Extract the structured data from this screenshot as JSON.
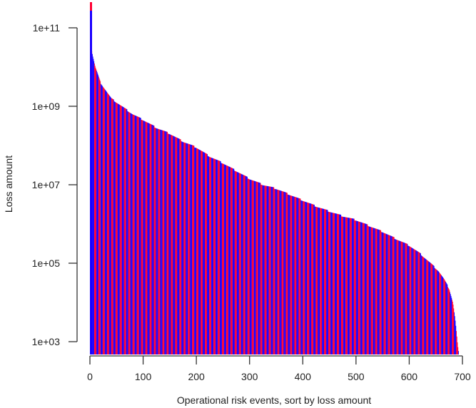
{
  "chart_data": {
    "type": "bar",
    "title": "",
    "xlabel": "Operational risk events, sort by loss amount",
    "ylabel": "Loss amount",
    "yscale": "log",
    "xlim": [
      0,
      700
    ],
    "ylim_log10": [
      3,
      11
    ],
    "x_ticks": [
      0,
      100,
      200,
      300,
      400,
      500,
      600,
      700
    ],
    "x_tick_labels": [
      "0",
      "100",
      "200",
      "300",
      "400",
      "500",
      "600",
      "700"
    ],
    "y_ticks": [
      1000.0,
      100000.0,
      10000000.0,
      1000000000.0,
      100000000000.0
    ],
    "y_tick_labels": [
      "1e+03",
      "1e+05",
      "1e+07",
      "1e+09",
      "1e+11"
    ],
    "grid": false,
    "legend": null,
    "bar_colors": [
      "#ff0033",
      "#1a00ff"
    ],
    "n_bars": 693,
    "envelope_log10": {
      "x": [
        0,
        1,
        2,
        5,
        10,
        20,
        30,
        40,
        60,
        80,
        100,
        125,
        150,
        175,
        200,
        225,
        250,
        275,
        300,
        325,
        350,
        375,
        400,
        425,
        450,
        475,
        500,
        525,
        550,
        575,
        600,
        620,
        640,
        655,
        665,
        675,
        682,
        686,
        689,
        691,
        693
      ],
      "log10": [
        11.65,
        11.3,
        10.53,
        10.3,
        10.0,
        9.6,
        9.4,
        9.2,
        9.0,
        8.8,
        8.65,
        8.45,
        8.3,
        8.1,
        7.95,
        7.72,
        7.55,
        7.35,
        7.15,
        7.0,
        6.9,
        6.75,
        6.6,
        6.45,
        6.32,
        6.2,
        6.1,
        5.95,
        5.8,
        5.62,
        5.45,
        5.25,
        5.0,
        4.8,
        4.6,
        4.35,
        4.0,
        3.6,
        3.2,
        2.9,
        2.7
      ]
    }
  }
}
